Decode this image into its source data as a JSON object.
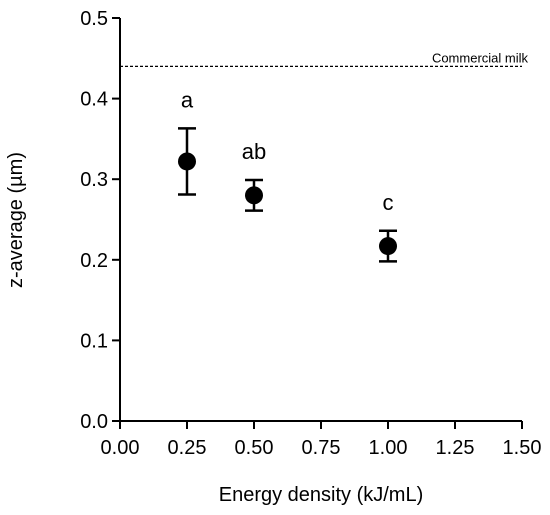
{
  "chart_data": {
    "type": "scatter",
    "title": "",
    "xlabel": "Energy density (kJ/mL)",
    "ylabel": "z-average (µm)",
    "xlim": [
      0.0,
      1.5
    ],
    "ylim": [
      0.0,
      0.5
    ],
    "x_ticks": [
      "0.00",
      "0.25",
      "0.50",
      "0.75",
      "1.00",
      "1.25",
      "1.50"
    ],
    "y_ticks": [
      "0.0",
      "0.1",
      "0.2",
      "0.3",
      "0.4",
      "0.5"
    ],
    "grid": false,
    "series": [
      {
        "points": [
          {
            "x": 0.25,
            "y": 0.322,
            "err_low": 0.281,
            "err_high": 0.363,
            "label": "a"
          },
          {
            "x": 0.5,
            "y": 0.28,
            "err_low": 0.261,
            "err_high": 0.299,
            "label": "ab"
          },
          {
            "x": 1.0,
            "y": 0.217,
            "err_low": 0.198,
            "err_high": 0.236,
            "label": "c"
          }
        ],
        "color": "#000000"
      }
    ],
    "reference_line": {
      "y": 0.44,
      "label": "Commercial milk",
      "style": "dashed"
    }
  }
}
